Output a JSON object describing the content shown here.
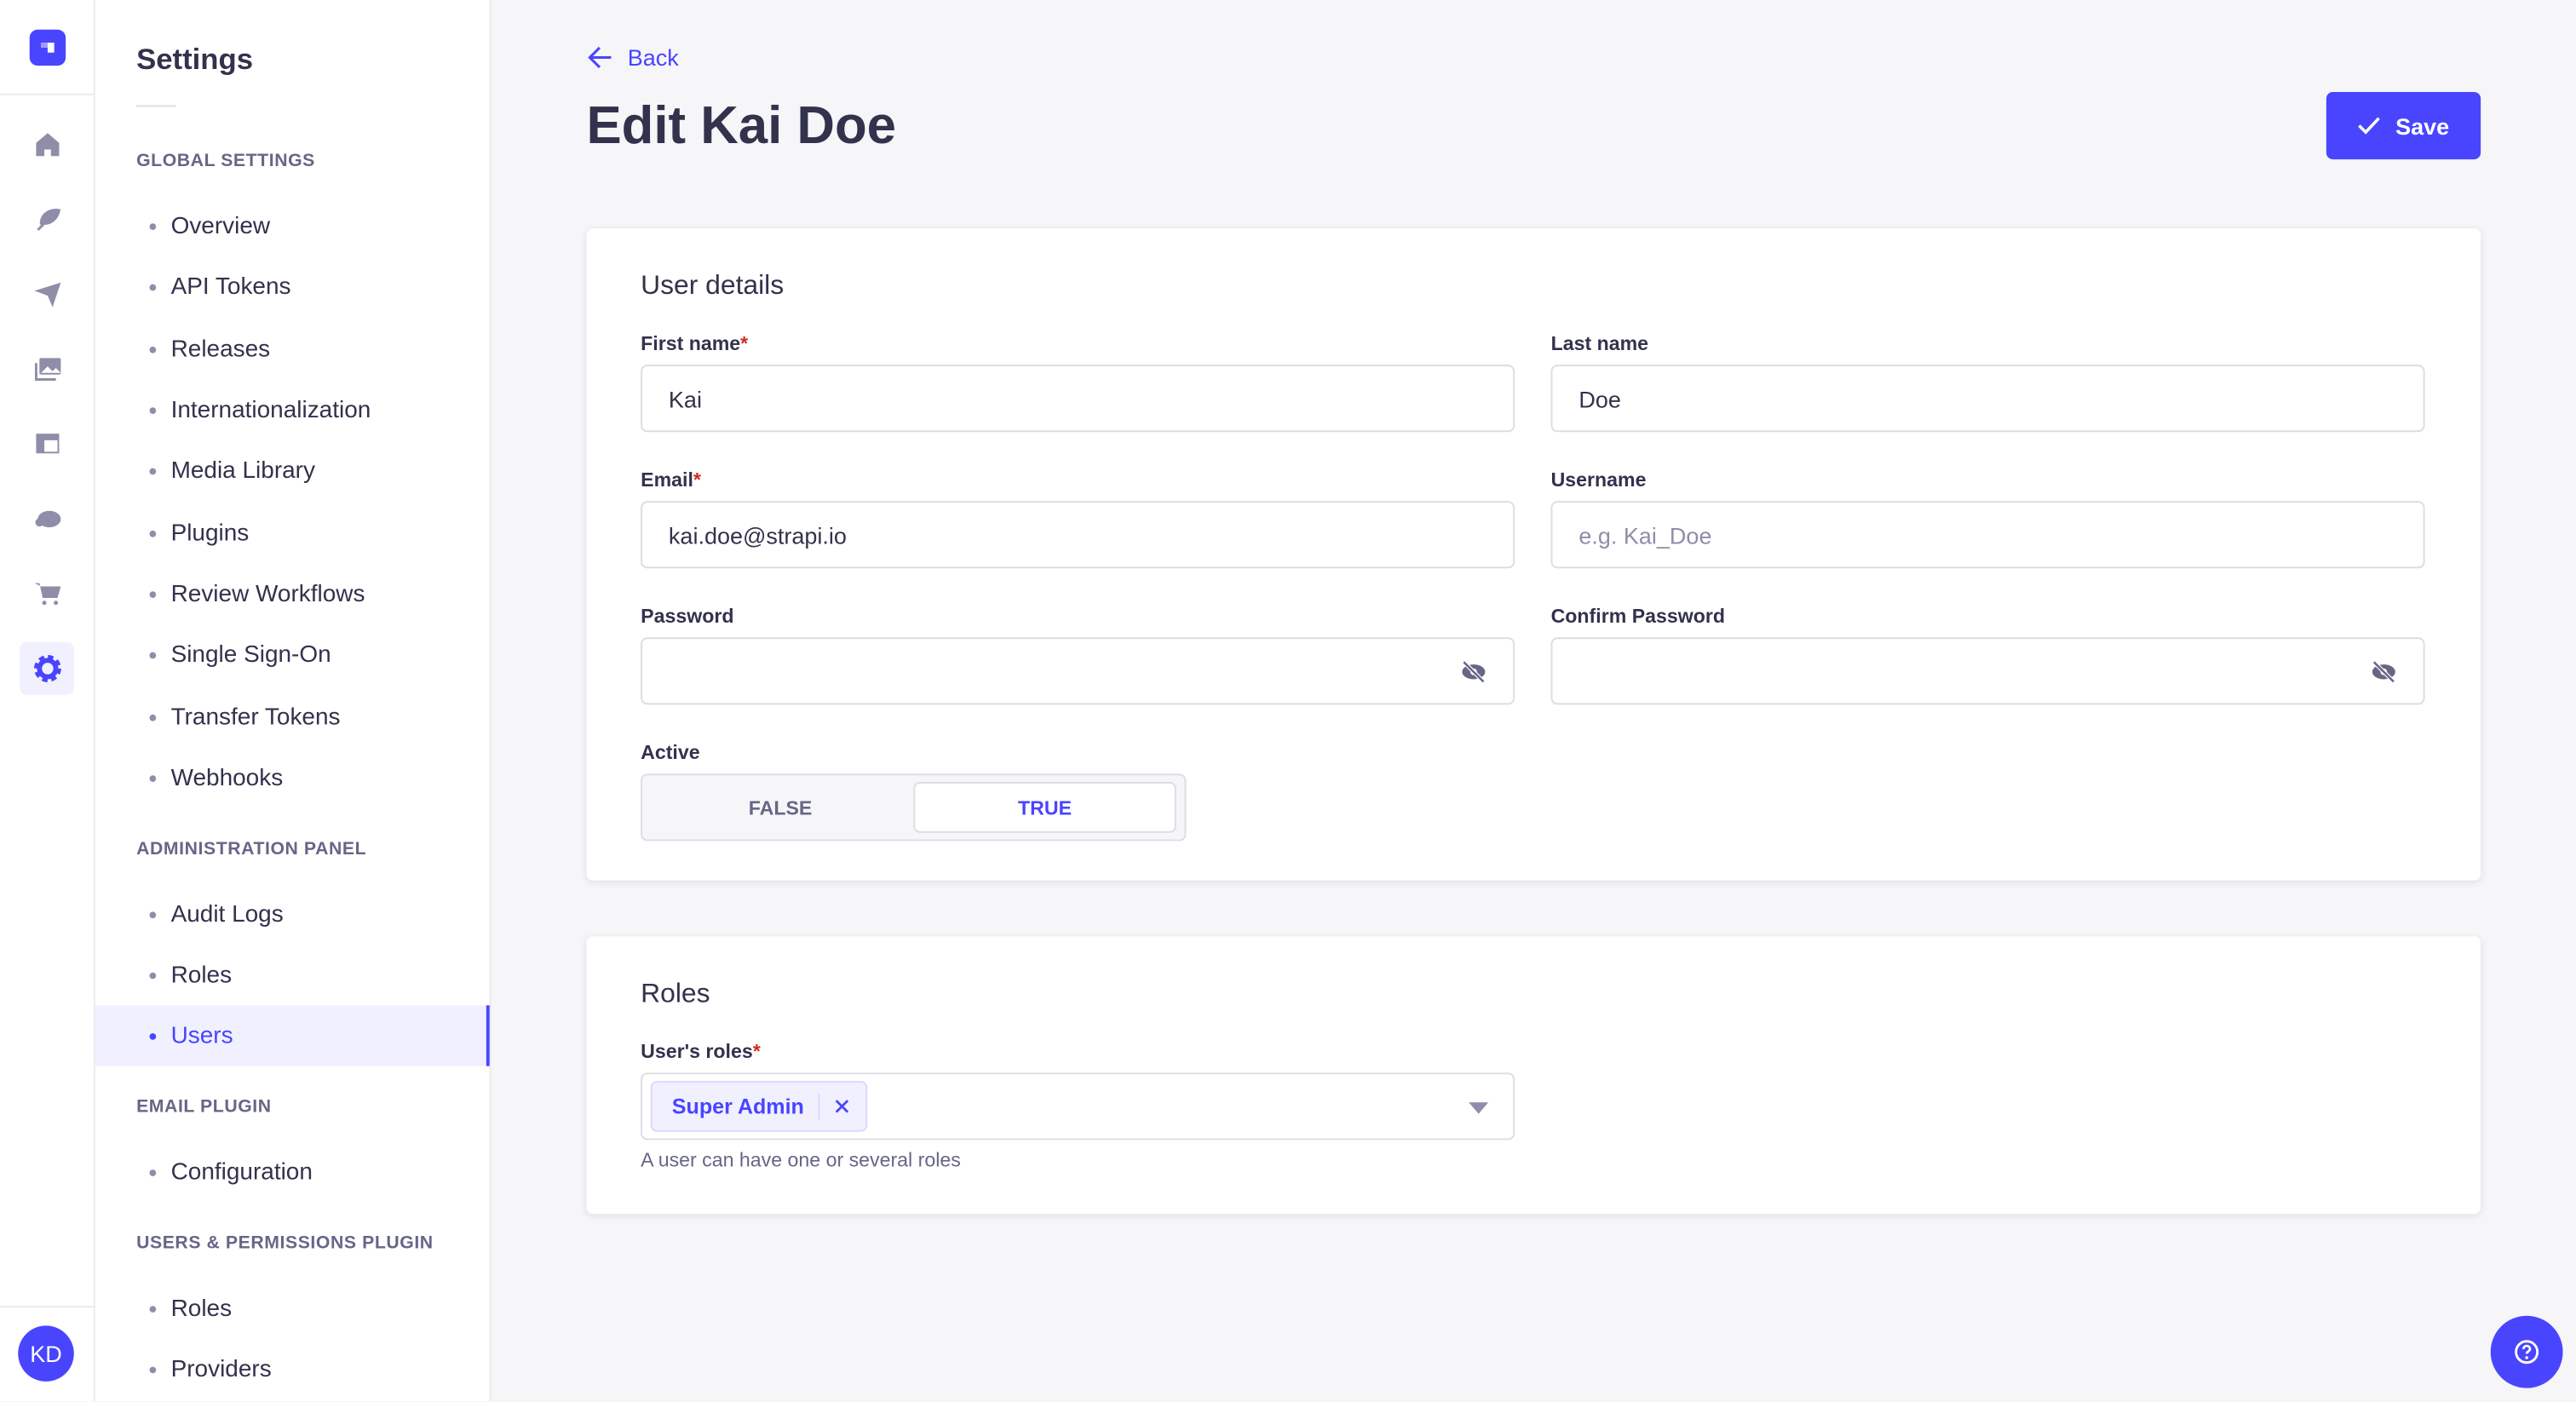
{
  "rail": {
    "icons": [
      "strapi-logo-icon",
      "home-icon",
      "feather-icon",
      "paper-plane-icon",
      "images-icon",
      "layout-icon",
      "cloud-icon",
      "cart-icon",
      "gear-icon"
    ],
    "avatar": "KD"
  },
  "subnav": {
    "title": "Settings",
    "sections": [
      {
        "label": "GLOBAL SETTINGS",
        "items": [
          "Overview",
          "API Tokens",
          "Releases",
          "Internationalization",
          "Media Library",
          "Plugins",
          "Review Workflows",
          "Single Sign-On",
          "Transfer Tokens",
          "Webhooks"
        ]
      },
      {
        "label": "ADMINISTRATION PANEL",
        "items": [
          "Audit Logs",
          "Roles",
          "Users"
        ]
      },
      {
        "label": "EMAIL PLUGIN",
        "items": [
          "Configuration"
        ]
      },
      {
        "label": "USERS & PERMISSIONS PLUGIN",
        "items": [
          "Roles",
          "Providers"
        ]
      }
    ],
    "active": "Users"
  },
  "header": {
    "back": "Back",
    "title": "Edit Kai Doe",
    "save": "Save"
  },
  "details": {
    "title": "User details",
    "first_name": {
      "label": "First name",
      "value": "Kai"
    },
    "last_name": {
      "label": "Last name",
      "value": "Doe"
    },
    "email": {
      "label": "Email",
      "value": "kai.doe@strapi.io"
    },
    "username": {
      "label": "Username",
      "placeholder": "e.g. Kai_Doe"
    },
    "password": {
      "label": "Password",
      "value": ""
    },
    "confirm_password": {
      "label": "Confirm Password",
      "value": ""
    },
    "active": {
      "label": "Active",
      "false_label": "FALSE",
      "true_label": "TRUE",
      "value": "TRUE"
    }
  },
  "roles": {
    "title": "Roles",
    "label": "User's roles",
    "tags": [
      "Super Admin"
    ],
    "hint": "A user can have one or several roles"
  },
  "colors": {
    "primary": "#4945ff",
    "text": "#32324d",
    "muted": "#666687",
    "bg": "#f6f6f9"
  }
}
